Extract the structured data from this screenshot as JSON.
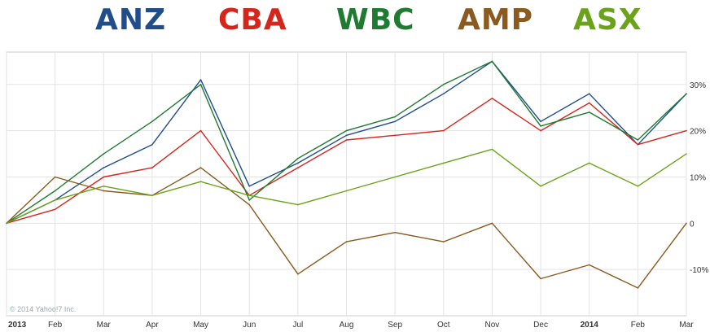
{
  "legend": [
    {
      "name": "ANZ",
      "color": "#1f4e8a"
    },
    {
      "name": "CBA",
      "color": "#d6261c"
    },
    {
      "name": "WBC",
      "color": "#1f7a32"
    },
    {
      "name": "AMP",
      "color": "#8a5a1e"
    },
    {
      "name": "ASX",
      "color": "#6aa31a"
    }
  ],
  "copyright": "© 2014 Yahoo!7 Inc.",
  "chart_data": {
    "type": "line",
    "x_tick_labels": [
      "2013",
      "Feb",
      "Mar",
      "Apr",
      "May",
      "Jun",
      "Jul",
      "Aug",
      "Sep",
      "Oct",
      "Nov",
      "Dec",
      "2014",
      "Feb",
      "Mar"
    ],
    "y_tick_labels": [
      "30%",
      "20%",
      "10%",
      "0",
      "-10%"
    ],
    "y_ticks": [
      30,
      20,
      10,
      0,
      -10
    ],
    "ylim": [
      -20,
      37
    ],
    "x": [
      "2013-01",
      "2013-02",
      "2013-03",
      "2013-04",
      "2013-05",
      "2013-06",
      "2013-07",
      "2013-08",
      "2013-09",
      "2013-10",
      "2013-11",
      "2013-12",
      "2014-01",
      "2014-02",
      "2014-03"
    ],
    "series": [
      {
        "name": "ANZ",
        "color": "#1f4e8a",
        "values": [
          0,
          5,
          12,
          17,
          31,
          8,
          13,
          19,
          22,
          28,
          35,
          22,
          28,
          17,
          28
        ]
      },
      {
        "name": "CBA",
        "color": "#d6261c",
        "values": [
          0,
          3,
          10,
          12,
          20,
          6,
          12,
          18,
          19,
          20,
          27,
          20,
          26,
          17,
          20
        ]
      },
      {
        "name": "WBC",
        "color": "#1f7a32",
        "values": [
          0,
          7,
          15,
          22,
          30,
          5,
          14,
          20,
          23,
          30,
          35,
          21,
          24,
          18,
          28
        ]
      },
      {
        "name": "AMP",
        "color": "#8a5a1e",
        "values": [
          0,
          10,
          7,
          6,
          12,
          4,
          -11,
          -4,
          -2,
          -4,
          0,
          -12,
          -9,
          -14,
          0
        ]
      },
      {
        "name": "ASX",
        "color": "#6aa31a",
        "values": [
          0,
          5,
          8,
          6,
          9,
          6,
          4,
          7,
          10,
          13,
          16,
          8,
          13,
          8,
          15
        ]
      }
    ]
  }
}
